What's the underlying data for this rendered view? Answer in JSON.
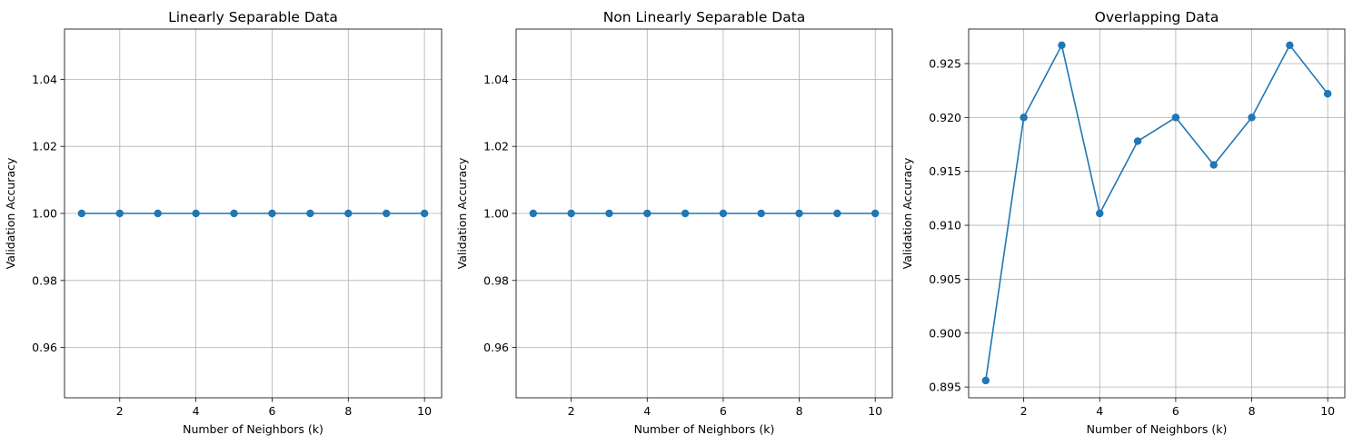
{
  "chart_data": [
    {
      "type": "line",
      "title": "Linearly Separable Data",
      "xlabel": "Number of Neighbors (k)",
      "ylabel": "Validation Accuracy",
      "x": [
        1,
        2,
        3,
        4,
        5,
        6,
        7,
        8,
        9,
        10
      ],
      "series": [
        {
          "values": [
            1.0,
            1.0,
            1.0,
            1.0,
            1.0,
            1.0,
            1.0,
            1.0,
            1.0,
            1.0
          ]
        }
      ],
      "xlim": [
        0.55,
        10.45
      ],
      "ylim": [
        0.945,
        1.055
      ],
      "xticks": [
        2,
        4,
        6,
        8,
        10
      ],
      "yticks": [
        0.96,
        0.98,
        1.0,
        1.02,
        1.04
      ],
      "ytick_labels": [
        "0.96",
        "0.98",
        "1.00",
        "1.02",
        "1.04"
      ],
      "grid": true,
      "marker": "circle",
      "color": "#1f77b4"
    },
    {
      "type": "line",
      "title": "Non Linearly Separable Data",
      "xlabel": "Number of Neighbors (k)",
      "ylabel": "Validation Accuracy",
      "x": [
        1,
        2,
        3,
        4,
        5,
        6,
        7,
        8,
        9,
        10
      ],
      "series": [
        {
          "values": [
            1.0,
            1.0,
            1.0,
            1.0,
            1.0,
            1.0,
            1.0,
            1.0,
            1.0,
            1.0
          ]
        }
      ],
      "xlim": [
        0.55,
        10.45
      ],
      "ylim": [
        0.945,
        1.055
      ],
      "xticks": [
        2,
        4,
        6,
        8,
        10
      ],
      "yticks": [
        0.96,
        0.98,
        1.0,
        1.02,
        1.04
      ],
      "ytick_labels": [
        "0.96",
        "0.98",
        "1.00",
        "1.02",
        "1.04"
      ],
      "grid": true,
      "marker": "circle",
      "color": "#1f77b4"
    },
    {
      "type": "line",
      "title": "Overlapping Data",
      "xlabel": "Number of Neighbors (k)",
      "ylabel": "Validation Accuracy",
      "x": [
        1,
        2,
        3,
        4,
        5,
        6,
        7,
        8,
        9,
        10
      ],
      "series": [
        {
          "values": [
            0.8956,
            0.92,
            0.9267,
            0.9111,
            0.9178,
            0.92,
            0.9156,
            0.92,
            0.9267,
            0.9222
          ]
        }
      ],
      "xlim": [
        0.55,
        10.45
      ],
      "ylim": [
        0.894,
        0.9282
      ],
      "xticks": [
        2,
        4,
        6,
        8,
        10
      ],
      "yticks": [
        0.895,
        0.9,
        0.905,
        0.91,
        0.915,
        0.92,
        0.925
      ],
      "ytick_labels": [
        "0.895",
        "0.900",
        "0.905",
        "0.910",
        "0.915",
        "0.920",
        "0.925"
      ],
      "grid": true,
      "marker": "circle",
      "color": "#1f77b4"
    }
  ]
}
